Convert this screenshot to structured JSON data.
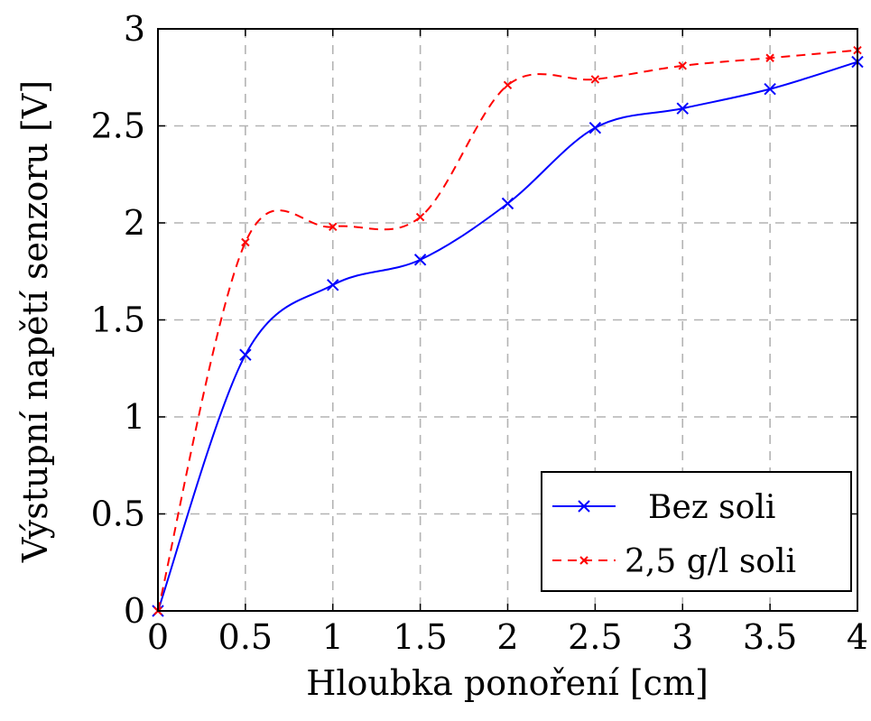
{
  "chart_data": {
    "type": "line",
    "title": "",
    "xlabel": "Hloubka ponoření [cm]",
    "ylabel": "Výstupní napětí senzoru [V]",
    "xlim": [
      0,
      4
    ],
    "ylim": [
      0,
      3
    ],
    "xticks": [
      "0",
      "0.5",
      "1",
      "1.5",
      "2",
      "2.5",
      "3",
      "3.5",
      "4"
    ],
    "yticks": [
      "0",
      "0.5",
      "1",
      "1.5",
      "2",
      "2.5",
      "3"
    ],
    "grid": true,
    "legend_position": "bottom-right",
    "x": [
      0,
      0.5,
      1,
      1.5,
      2,
      2.5,
      3,
      3.5,
      4
    ],
    "series": [
      {
        "name": "Bez soli",
        "color": "#0000ff",
        "line_style": "solid",
        "marker": "x",
        "values": [
          0,
          1.32,
          1.68,
          1.81,
          2.1,
          2.49,
          2.59,
          2.69,
          2.83
        ]
      },
      {
        "name": "2,5 g/l soli",
        "color": "#ff0000",
        "line_style": "dashed",
        "marker": "x",
        "values": [
          0,
          1.9,
          1.98,
          2.03,
          2.71,
          2.74,
          2.81,
          2.85,
          2.89
        ]
      }
    ]
  }
}
